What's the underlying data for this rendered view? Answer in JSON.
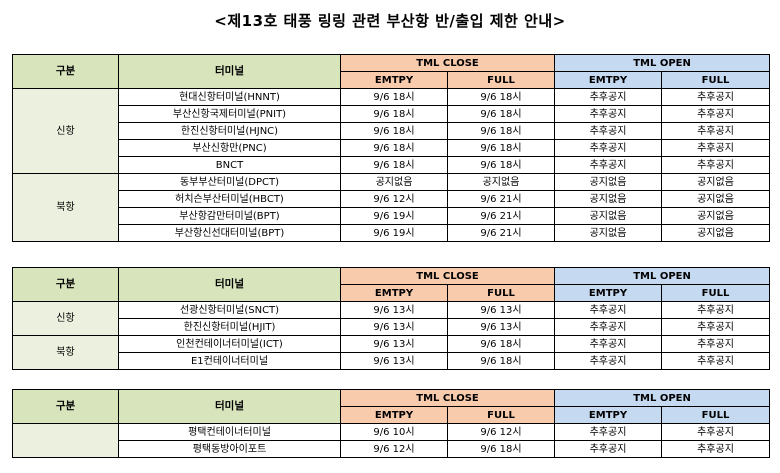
{
  "title": "<제13호 태풍 링링 관련 부산항 반/출입 제한 안내>",
  "headers": {
    "group": "구분",
    "terminal": "터미널",
    "close": "TML CLOSE",
    "open": "TML OPEN",
    "empty": "EMTPY",
    "full": "FULL"
  },
  "tables": [
    {
      "groups": [
        {
          "name": "신항",
          "rows": [
            {
              "terminal": "현대신항터미널(HNNT)",
              "close_empty": "9/6 18시",
              "close_full": "9/6 18시",
              "open_empty": "추후공지",
              "open_full": "추후공지"
            },
            {
              "terminal": "부산신항국제터미널(PNIT)",
              "close_empty": "9/6 18시",
              "close_full": "9/6 18시",
              "open_empty": "추후공지",
              "open_full": "추후공지"
            },
            {
              "terminal": "한진신항터미널(HJNC)",
              "close_empty": "9/6 18시",
              "close_full": "9/6 18시",
              "open_empty": "추후공지",
              "open_full": "추후공지"
            },
            {
              "terminal": "부산신항만(PNC)",
              "close_empty": "9/6 18시",
              "close_full": "9/6 18시",
              "open_empty": "추후공지",
              "open_full": "추후공지"
            },
            {
              "terminal": "BNCT",
              "close_empty": "9/6 18시",
              "close_full": "9/6 18시",
              "open_empty": "추후공지",
              "open_full": "추후공지"
            }
          ]
        },
        {
          "name": "북항",
          "rows": [
            {
              "terminal": "동부부산터미널(DPCT)",
              "close_empty": "공지없음",
              "close_full": "공지없음",
              "open_empty": "공지없음",
              "open_full": "공지없음"
            },
            {
              "terminal": "허치슨부산터미널(HBCT)",
              "close_empty": "9/6 12시",
              "close_full": "9/6 21시",
              "open_empty": "공지없음",
              "open_full": "공지없음"
            },
            {
              "terminal": "부산항감만터미널(BPT)",
              "close_empty": "9/6 19시",
              "close_full": "9/6 21시",
              "open_empty": "공지없음",
              "open_full": "공지없음"
            },
            {
              "terminal": "부산항신선대터미널(BPT)",
              "close_empty": "9/6 19시",
              "close_full": "9/6 21시",
              "open_empty": "공지없음",
              "open_full": "공지없음"
            }
          ]
        }
      ]
    },
    {
      "groups": [
        {
          "name": "신항",
          "rows": [
            {
              "terminal": "선광신항터미널(SNCT)",
              "close_empty": "9/6 13시",
              "close_full": "9/6 13시",
              "open_empty": "추후공지",
              "open_full": "추후공지"
            },
            {
              "terminal": "한진신항터미널(HJIT)",
              "close_empty": "9/6 13시",
              "close_full": "9/6 13시",
              "open_empty": "추후공지",
              "open_full": "추후공지"
            }
          ]
        },
        {
          "name": "북항",
          "rows": [
            {
              "terminal": "인천컨테이너터미널(ICT)",
              "close_empty": "9/6 13시",
              "close_full": "9/6 18시",
              "open_empty": "추후공지",
              "open_full": "추후공지"
            },
            {
              "terminal": "E1컨테이너터미널",
              "close_empty": "9/6 13시",
              "close_full": "9/6 18시",
              "open_empty": "추후공지",
              "open_full": "추후공지"
            }
          ]
        }
      ]
    },
    {
      "groups": [
        {
          "name": "",
          "rows": [
            {
              "terminal": "평택컨테이너터미널",
              "close_empty": "9/6 10시",
              "close_full": "9/6 12시",
              "open_empty": "추후공지",
              "open_full": "추후공지"
            },
            {
              "terminal": "평택동방아이포트",
              "close_empty": "9/6 12시",
              "close_full": "9/6 18시",
              "open_empty": "추후공지",
              "open_full": "추후공지"
            }
          ]
        }
      ]
    }
  ]
}
